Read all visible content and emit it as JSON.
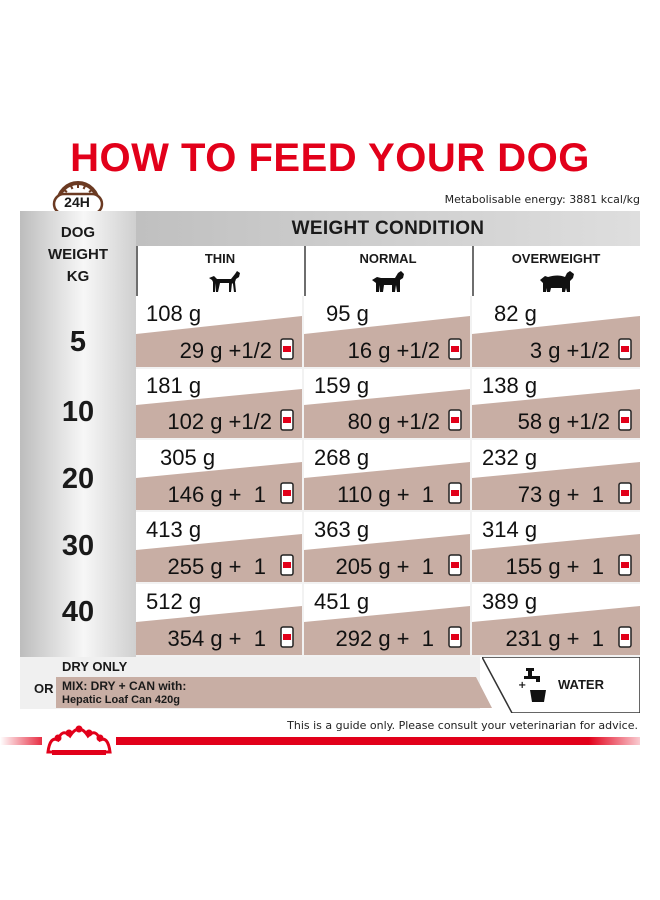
{
  "title": "HOW TO FEED YOUR DOG",
  "clock_label": "24H",
  "metabolisable_energy": "Metabolisable energy: 3881 kcal/kg",
  "row_header": "DOG\nWEIGHT\nKG",
  "group_header": "WEIGHT CONDITION",
  "columns": [
    "THIN",
    "NORMAL",
    "OVERWEIGHT"
  ],
  "rows": [
    {
      "weight": "5",
      "dry": [
        "108 g",
        "95 g",
        "82 g"
      ],
      "mix": [
        "29 g +1/2",
        "16 g +1/2",
        "3 g +1/2"
      ]
    },
    {
      "weight": "10",
      "dry": [
        "181 g",
        "159 g",
        "138 g"
      ],
      "mix": [
        "102 g +1/2",
        "80 g +1/2",
        "58 g +1/2"
      ]
    },
    {
      "weight": "20",
      "dry": [
        "305 g",
        "268 g",
        "232 g"
      ],
      "mix": [
        "146 g +  1",
        "110 g +  1",
        "73 g +  1"
      ]
    },
    {
      "weight": "30",
      "dry": [
        "413 g",
        "363 g",
        "314 g"
      ],
      "mix": [
        "255 g +  1",
        "205 g +  1",
        "155 g +  1"
      ]
    },
    {
      "weight": "40",
      "dry": [
        "512 g",
        "451 g",
        "389 g"
      ],
      "mix": [
        "354 g +  1",
        "292 g +  1",
        "231 g +  1"
      ]
    }
  ],
  "legend": {
    "dry_only": "DRY ONLY",
    "or": "OR",
    "mix_line1": "MIX: DRY + CAN with:",
    "mix_line2": "Hepatic Loaf Can 420g",
    "water": "WATER"
  },
  "disclaimer": "This is a guide only. Please consult your veterinarian for advice.",
  "colors": {
    "brand_red": "#e2001a",
    "mix_band": "#c8aea4",
    "gray_header": "#c0c0c0"
  },
  "icons": [
    "clock-icon",
    "thin-dog-icon",
    "normal-dog-icon",
    "overweight-dog-icon",
    "can-icon",
    "water-tap-icon",
    "royal-canin-crown-logo"
  ]
}
